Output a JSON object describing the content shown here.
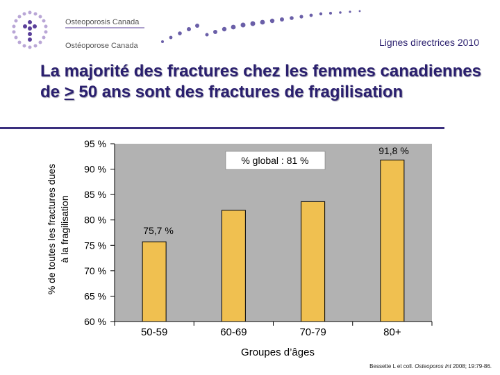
{
  "header": {
    "org_en": "Osteoporosis Canada",
    "org_fr": "Ostéoporose Canada",
    "guidelines": "Lignes directrices 2010"
  },
  "slide": {
    "title_part1": "La majorité des fractures chez les femmes canadiennes de ",
    "title_symbol": ">",
    "title_part2": " 50 ans sont des fractures de fragilisation"
  },
  "citation": {
    "authors": "Bessette L et coll. ",
    "journal": "Osteoporos Int",
    "rest": " 2008; 19:79-86."
  },
  "colors": {
    "title": "#2a1f6e",
    "bar_fill": "#f0c050",
    "plot_bg": "#b2b2b2"
  },
  "chart_data": {
    "type": "bar",
    "categories": [
      "50-59",
      "60-69",
      "70-79",
      "80+"
    ],
    "values": [
      75.7,
      81.9,
      83.6,
      91.8
    ],
    "value_labels": [
      "75,7 %",
      "",
      "",
      "91,8 %"
    ],
    "ylim": [
      60,
      95
    ],
    "yticks": [
      95,
      90,
      85,
      80,
      75,
      70,
      65,
      60
    ],
    "ytick_labels": [
      "95 %",
      "90 %",
      "85 %",
      "80 %",
      "75 %",
      "70 %",
      "65 %",
      "60 %"
    ],
    "ylabel_line1": "% de toutes les fractures dues",
    "ylabel_line2": "à la fragilisation",
    "xlabel": "Groupes d’âges",
    "annotation": "% global : 81 %"
  }
}
